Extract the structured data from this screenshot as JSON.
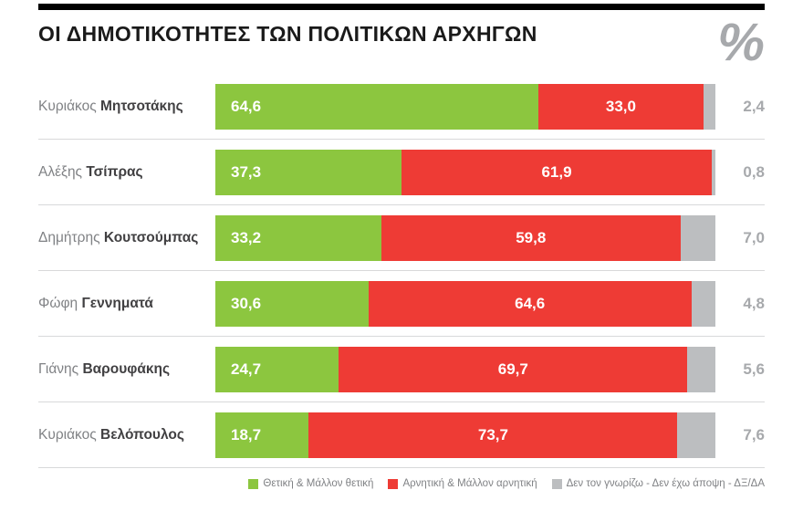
{
  "header": {
    "title": "ΟΙ ΔΗΜΟΤΙΚΟΤΗΤΕΣ ΤΩΝ ΠΟΛΙΤΙΚΩΝ ΑΡΧΗΓΩΝ",
    "unit_symbol": "%"
  },
  "colors": {
    "positive": "#8cc63f",
    "negative": "#ee3b35",
    "unknown": "#bcbec0",
    "rule": "#000000",
    "separator": "#d8d9da",
    "right_value_text": "#a7a9ac"
  },
  "chart_data": {
    "type": "bar",
    "orientation": "horizontal",
    "stacked": true,
    "title": "ΟΙ ΔΗΜΟΤΙΚΟΤΗΤΕΣ ΤΩΝ ΠΟΛΙΤΙΚΩΝ ΑΡΧΗΓΩΝ",
    "value_unit": "%",
    "x_range": [
      0,
      100
    ],
    "grid": false,
    "legend_position": "bottom-right",
    "categories": [
      {
        "first_name": "Κυριάκος",
        "last_name": "Μητσοτάκης"
      },
      {
        "first_name": "Αλέξης",
        "last_name": "Τσίπρας"
      },
      {
        "first_name": "Δημήτρης",
        "last_name": "Κουτσούμπας"
      },
      {
        "first_name": "Φώφη",
        "last_name": "Γεννηματά"
      },
      {
        "first_name": "Γιάνης",
        "last_name": "Βαρουφάκης"
      },
      {
        "first_name": "Κυριάκος",
        "last_name": "Βελόπουλος"
      }
    ],
    "series": [
      {
        "name": "Θετική & Μάλλον θετική",
        "key": "positive",
        "values": [
          64.6,
          37.3,
          33.2,
          30.6,
          24.7,
          18.7
        ]
      },
      {
        "name": "Αρνητική & Μάλλον αρνητική",
        "key": "negative",
        "values": [
          33.0,
          61.9,
          59.8,
          64.6,
          69.7,
          73.7
        ]
      },
      {
        "name": "Δεν τον γνωρίζω - Δεν έχω άποψη - ΔΞ/ΔΑ",
        "key": "unknown",
        "values": [
          2.4,
          0.8,
          7.0,
          4.8,
          5.6,
          7.6
        ]
      }
    ]
  }
}
